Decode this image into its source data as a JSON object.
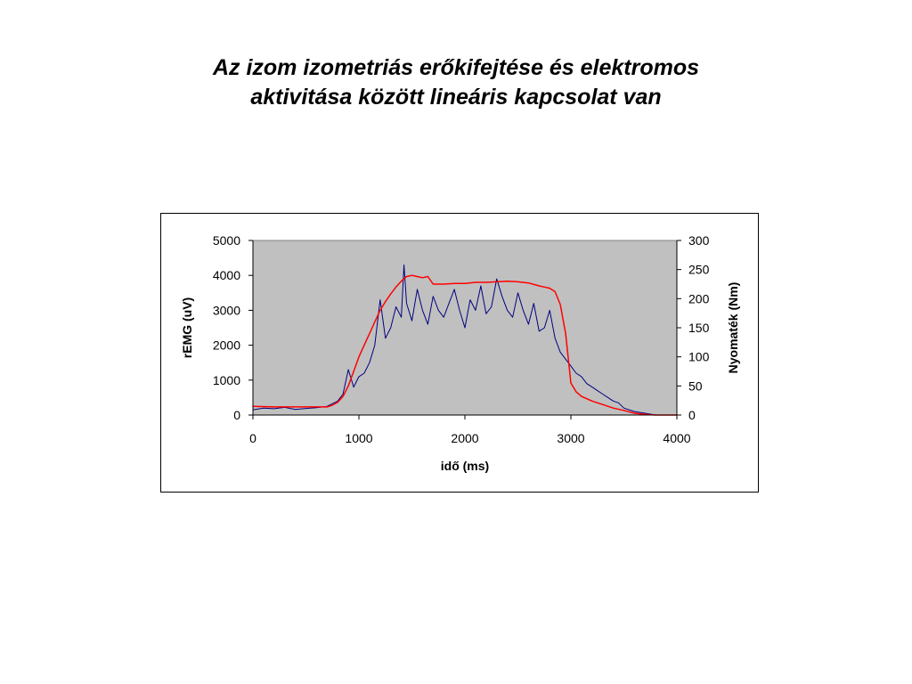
{
  "slide": {
    "title_line1": "Az izom izometriás erőkifejtése és elektromos",
    "title_line2": "aktivitása között lineáris kapcsolat van"
  },
  "chart_data": {
    "type": "line",
    "title": "",
    "xlabel": "idő (ms)",
    "ylabel": "rEMG (uV)",
    "y2label": "Nyomaték (Nm)",
    "xlim": [
      0,
      4000
    ],
    "ylim": [
      0,
      5000
    ],
    "y2lim": [
      0,
      300
    ],
    "xticks": [
      0,
      1000,
      2000,
      3000,
      4000
    ],
    "yticks": [
      0,
      1000,
      2000,
      3000,
      4000,
      5000
    ],
    "y2ticks": [
      0,
      50,
      100,
      150,
      200,
      250,
      300
    ],
    "grid": false,
    "legend": "none",
    "plot_background": "#c0c0c0",
    "series": [
      {
        "axis": "left",
        "color": "#000080",
        "x": [
          0,
          100,
          200,
          300,
          400,
          500,
          600,
          700,
          800,
          850,
          900,
          950,
          1000,
          1050,
          1100,
          1150,
          1200,
          1250,
          1300,
          1350,
          1400,
          1425,
          1450,
          1500,
          1550,
          1600,
          1650,
          1700,
          1750,
          1800,
          1850,
          1900,
          1950,
          2000,
          2050,
          2100,
          2150,
          2200,
          2250,
          2300,
          2350,
          2400,
          2450,
          2500,
          2550,
          2600,
          2650,
          2700,
          2750,
          2800,
          2850,
          2900,
          2950,
          3000,
          3050,
          3100,
          3150,
          3200,
          3250,
          3300,
          3350,
          3400,
          3450,
          3500,
          3600,
          3700,
          3800,
          3900,
          4000
        ],
        "y": [
          150,
          200,
          180,
          220,
          160,
          190,
          210,
          250,
          400,
          600,
          1300,
          800,
          1100,
          1200,
          1500,
          2000,
          3300,
          2200,
          2500,
          3100,
          2800,
          4300,
          3200,
          2700,
          3600,
          3000,
          2600,
          3400,
          3000,
          2800,
          3200,
          3600,
          3000,
          2500,
          3300,
          3000,
          3700,
          2900,
          3100,
          3900,
          3400,
          3000,
          2800,
          3500,
          3000,
          2600,
          3200,
          2400,
          2500,
          3000,
          2200,
          1800,
          1600,
          1400,
          1200,
          1100,
          900,
          800,
          700,
          600,
          500,
          400,
          350,
          200,
          100,
          50,
          0,
          0,
          0
        ]
      },
      {
        "axis": "right",
        "color": "#ff0000",
        "x": [
          0,
          200,
          400,
          600,
          700,
          750,
          800,
          850,
          900,
          950,
          1000,
          1050,
          1100,
          1150,
          1200,
          1250,
          1300,
          1350,
          1400,
          1450,
          1500,
          1550,
          1600,
          1650,
          1700,
          1800,
          1900,
          2000,
          2100,
          2200,
          2300,
          2400,
          2500,
          2600,
          2700,
          2750,
          2800,
          2850,
          2900,
          2950,
          3000,
          3050,
          3100,
          3150,
          3200,
          3300,
          3400,
          3500,
          3600,
          3700,
          3800,
          3900,
          4000
        ],
        "y": [
          15,
          14,
          14,
          14,
          14,
          17,
          22,
          32,
          50,
          75,
          100,
          120,
          140,
          160,
          180,
          195,
          208,
          220,
          230,
          238,
          240,
          238,
          236,
          238,
          225,
          225,
          226,
          226,
          228,
          228,
          229,
          230,
          229,
          227,
          222,
          220,
          218,
          212,
          190,
          140,
          55,
          40,
          32,
          28,
          24,
          18,
          12,
          8,
          3,
          1,
          0,
          0,
          0
        ]
      }
    ]
  }
}
